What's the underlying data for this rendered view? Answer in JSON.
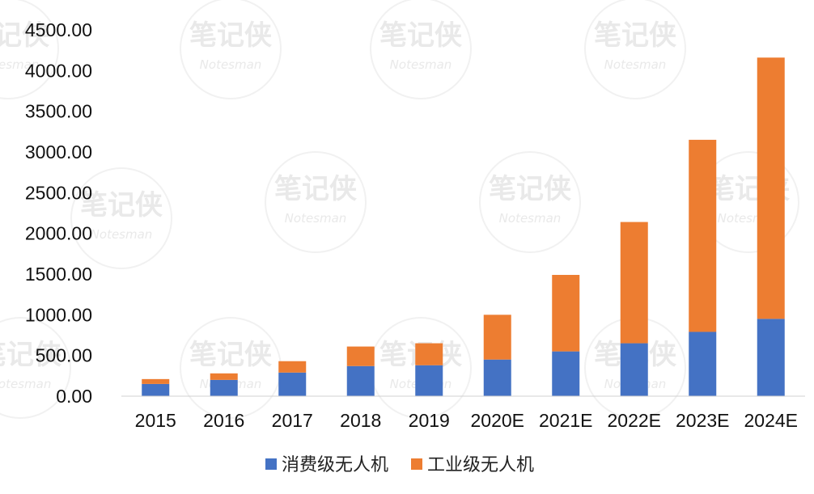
{
  "chart_data": {
    "type": "bar",
    "stacked": true,
    "categories": [
      "2015",
      "2016",
      "2017",
      "2018",
      "2019",
      "2020E",
      "2021E",
      "2022E",
      "2023E",
      "2024E"
    ],
    "series": [
      {
        "name": "消费级无人机",
        "color": "#4472C4",
        "values": [
          150,
          200,
          290,
          370,
          380,
          450,
          550,
          650,
          790,
          950
        ]
      },
      {
        "name": "工业级无人机",
        "color": "#ED7D31",
        "values": [
          60,
          80,
          140,
          240,
          270,
          550,
          940,
          1490,
          2360,
          3210
        ]
      }
    ],
    "y_ticks": [
      "0.00",
      "500.00",
      "1000.00",
      "1500.00",
      "2000.00",
      "2500.00",
      "3000.00",
      "3500.00",
      "4000.00",
      "4500.00"
    ],
    "ylim": [
      0,
      4500
    ],
    "grid": false,
    "legend_position": "bottom"
  },
  "watermark": {
    "text": "笔记侠",
    "subtext": "Notesman"
  }
}
